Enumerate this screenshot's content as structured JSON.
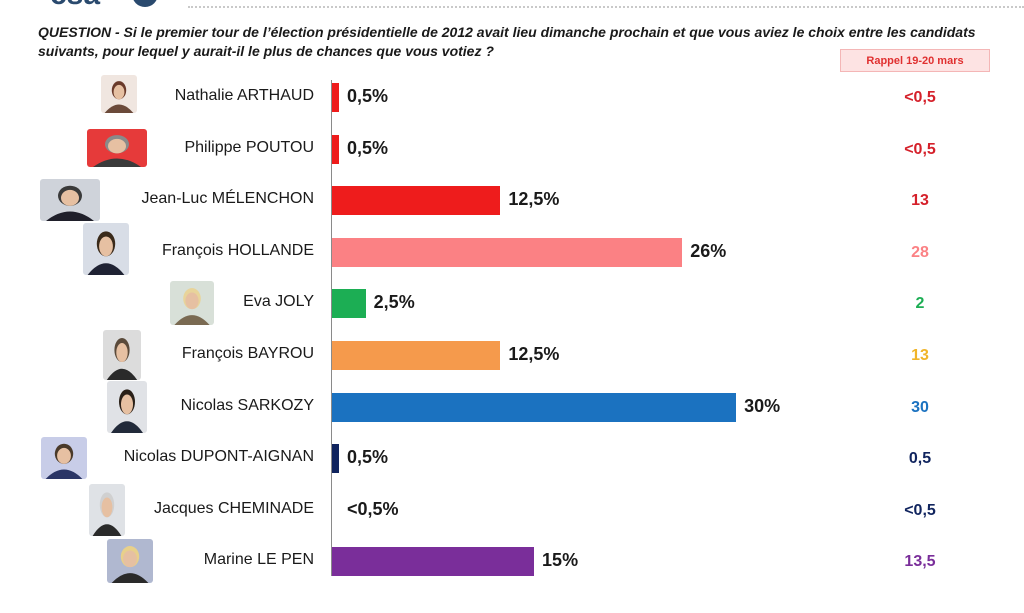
{
  "logo": {
    "text": "csa"
  },
  "question": {
    "lead": "QUESTION -",
    "text": " Si le premier tour de l’élection présidentielle de 2012 avait lieu dimanche prochain et que vous aviez le choix entre les candidats suivants, pour lequel y aurait-il le plus de chances que vous votiez ?"
  },
  "recall_header": "Rappel  19-20 mars",
  "chart_data": {
    "type": "bar",
    "orientation": "horizontal",
    "xlim": [
      0,
      32
    ],
    "categories": [
      "Nathalie ARTHAUD",
      "Philippe POUTOU",
      "Jean-Luc MÉLENCHON",
      "François HOLLANDE",
      "Eva JOLY",
      "François BAYROU",
      "Nicolas SARKOZY",
      "Nicolas DUPONT-AIGNAN",
      "Jacques CHEMINADE",
      "Marine LE PEN"
    ],
    "values": [
      0.5,
      0.5,
      12.5,
      26,
      2.5,
      12.5,
      30,
      0.5,
      0.2,
      15
    ],
    "value_labels": [
      "0,5%",
      "0,5%",
      "12,5%",
      "26%",
      "2,5%",
      "12,5%",
      "30%",
      "0,5%",
      "<0,5%",
      "15%"
    ],
    "bar_colors": [
      "#ee1c1c",
      "#ee1c1c",
      "#ee1c1c",
      "#fb8184",
      "#1cae54",
      "#f59a4c",
      "#1b72c0",
      "#10245e",
      "#ffffff",
      "#7a2e9a"
    ],
    "recall": {
      "label": "Rappel  19-20 mars",
      "values": [
        "<0,5",
        "<0,5",
        "13",
        "28",
        "2",
        "13",
        "30",
        "0,5",
        "<0,5",
        "13,5"
      ],
      "colors": [
        "#d5202a",
        "#d5202a",
        "#d5202a",
        "#fb8184",
        "#1cae54",
        "#f0b429",
        "#1b72c0",
        "#10245e",
        "#10245e",
        "#7a2e9a"
      ]
    }
  }
}
